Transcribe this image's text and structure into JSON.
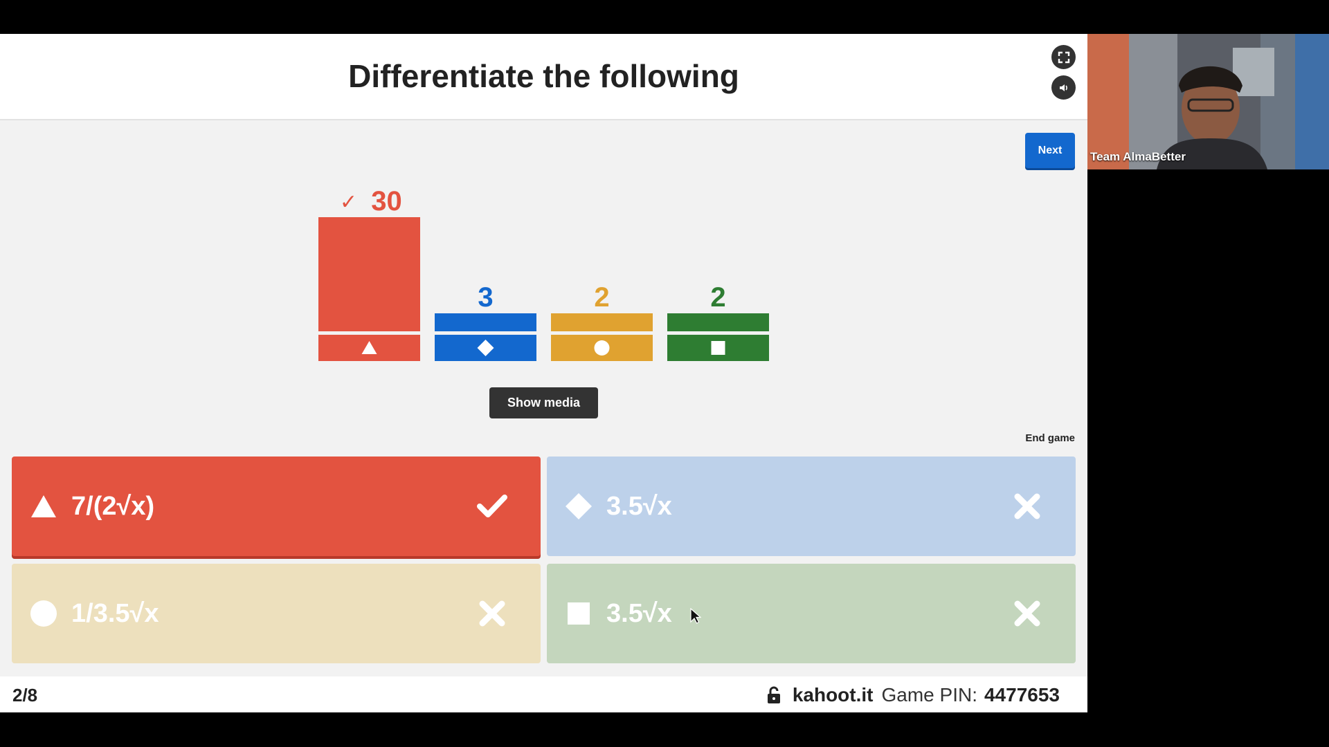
{
  "question": {
    "title": "Differentiate the following"
  },
  "controls": {
    "next_label": "Next",
    "show_media_label": "Show media",
    "end_game_label": "End game"
  },
  "chart_data": {
    "type": "bar",
    "categories": [
      "triangle",
      "diamond",
      "circle",
      "square"
    ],
    "values": [
      30,
      3,
      2,
      2
    ],
    "colors": [
      "#e35340",
      "#1368ce",
      "#e0a230",
      "#2e7d32"
    ],
    "correct_index": 0,
    "correct_mark": "✓"
  },
  "answers": [
    {
      "shape": "triangle",
      "text": "7/(2√x)",
      "correct": true,
      "color": "#e35340"
    },
    {
      "shape": "diamond",
      "text": "3.5√x",
      "correct": false,
      "color": "#bdd1ea"
    },
    {
      "shape": "circle",
      "text": "1/3.5√x",
      "correct": false,
      "color": "#ede0bd"
    },
    {
      "shape": "square",
      "text": "3.5√x",
      "correct": false,
      "color": "#c4d6bd"
    }
  ],
  "footer": {
    "counter": "2/8",
    "site": "kahoot.it",
    "pin_label": "Game PIN:",
    "pin_value": "4477653"
  },
  "webcam": {
    "name": "Team AlmaBetter"
  },
  "icons": {
    "fullscreen": "fullscreen-icon",
    "sound": "speaker-icon",
    "lock": "lock-icon"
  }
}
